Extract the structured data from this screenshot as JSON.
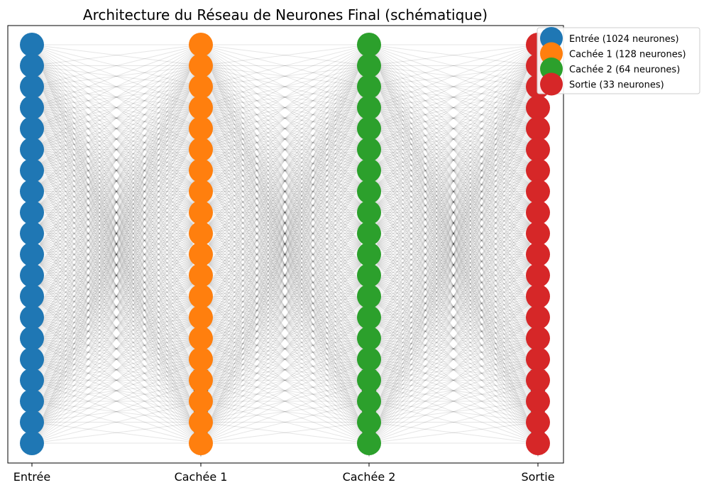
{
  "chart_data": {
    "type": "diagram",
    "title": "Architecture du Réseau de Neurones Final (schématique)",
    "layers": [
      {
        "name": "Entrée",
        "label": "Entrée",
        "legend": "Entrée (1024 neurones)",
        "neurons": 1024,
        "color": "#1f77b4"
      },
      {
        "name": "Cachée 1",
        "label": "Cachée 1",
        "legend": "Cachée 1 (128 neurones)",
        "neurons": 128,
        "color": "#ff7f0e"
      },
      {
        "name": "Cachée 2",
        "label": "Cachée 2",
        "legend": "Cachée 2 (64 neurones)",
        "neurons": 64,
        "color": "#2ca02c"
      },
      {
        "name": "Sortie",
        "label": "Sortie",
        "legend": "Sortie (33 neurones)",
        "neurons": 33,
        "color": "#d62728"
      }
    ],
    "displayed_neurons_per_layer": 20,
    "edge_color": "#000000",
    "legend_position": "top-right outside",
    "grid": false
  }
}
